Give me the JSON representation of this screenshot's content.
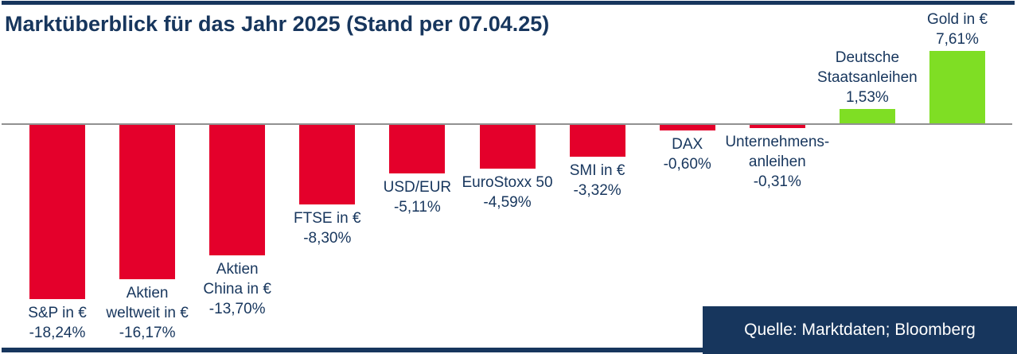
{
  "title": "Marktüberblick für das Jahr 2025 (Stand per 07.04.25)",
  "source_box": {
    "text": "Quelle: Marktdaten; Bloomberg"
  },
  "colors": {
    "navy": "#17365D",
    "negative_bar": "#E4002B",
    "positive_bar": "#7FDE24",
    "axis_gray": "#919191",
    "source_text": "#FFFFFF"
  },
  "chart_data": {
    "type": "bar",
    "orientation": "vertical",
    "title": "Marktüberblick für das Jahr 2025 (Stand per 07.04.25)",
    "unit": "percent",
    "axis_visible": false,
    "gridlines": false,
    "legend": "none",
    "value_range_implied": [
      -20,
      10
    ],
    "bars": [
      {
        "label_lines": [
          "S&P in €"
        ],
        "value": -18.24,
        "value_label": "-18,24%",
        "color": "#E4002B"
      },
      {
        "label_lines": [
          "Aktien",
          "weltweit in €"
        ],
        "value": -16.17,
        "value_label": "-16,17%",
        "color": "#E4002B"
      },
      {
        "label_lines": [
          "Aktien",
          "China in €"
        ],
        "value": -13.7,
        "value_label": "-13,70%",
        "color": "#E4002B"
      },
      {
        "label_lines": [
          "FTSE in €"
        ],
        "value": -8.3,
        "value_label": "-8,30%",
        "color": "#E4002B"
      },
      {
        "label_lines": [
          "USD/EUR"
        ],
        "value": -5.11,
        "value_label": "-5,11%",
        "color": "#E4002B"
      },
      {
        "label_lines": [
          "EuroStoxx 50"
        ],
        "value": -4.59,
        "value_label": "-4,59%",
        "color": "#E4002B"
      },
      {
        "label_lines": [
          "SMI in €"
        ],
        "value": -3.32,
        "value_label": "-3,32%",
        "color": "#E4002B"
      },
      {
        "label_lines": [
          "DAX"
        ],
        "value": -0.6,
        "value_label": "-0,60%",
        "color": "#E4002B"
      },
      {
        "label_lines": [
          "Unternehmens-",
          "anleihen"
        ],
        "value": -0.31,
        "value_label": "-0,31%",
        "color": "#E4002B"
      },
      {
        "label_lines": [
          "Deutsche",
          "Staatsanleihen"
        ],
        "value": 1.53,
        "value_label": "1,53%",
        "color": "#7FDE24"
      },
      {
        "label_lines": [
          "Gold in €"
        ],
        "value": 7.61,
        "value_label": "7,61%",
        "color": "#7FDE24"
      }
    ]
  }
}
